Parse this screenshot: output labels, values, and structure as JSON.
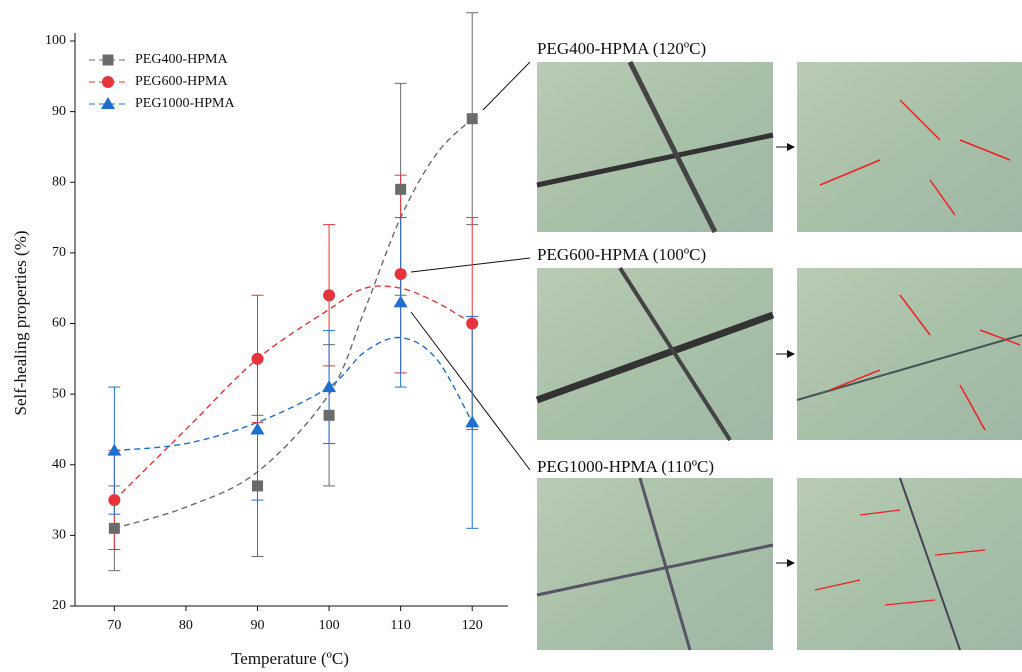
{
  "chart_data": {
    "type": "scatter",
    "x_label": "Temperature (ºC)",
    "y_label": "Self-healing properties (%)",
    "x": [
      70,
      90,
      100,
      110,
      120
    ],
    "xlim": [
      64.5,
      125
    ],
    "xticks": [
      70,
      80,
      90,
      100,
      110,
      120
    ],
    "ylim": [
      20,
      100
    ],
    "yticks": [
      20,
      30,
      40,
      50,
      60,
      70,
      80,
      90,
      100
    ],
    "legend": "upper left",
    "fit_x": [
      70,
      80,
      90,
      100,
      105,
      110,
      115,
      120
    ],
    "series": [
      {
        "name": "PEG400-HPMA",
        "color": "#6b6b6b",
        "marker": "square",
        "values": [
          31,
          37,
          47,
          79,
          89
        ],
        "errors": [
          6,
          10,
          10,
          15,
          15
        ],
        "fit": [
          31,
          34,
          39,
          50,
          62,
          75,
          84,
          89
        ]
      },
      {
        "name": "PEG600-HPMA",
        "color": "#e8333c",
        "marker": "circle",
        "values": [
          35,
          55,
          64,
          67,
          60
        ],
        "errors": [
          7,
          9,
          10,
          14,
          15
        ],
        "fit": [
          35,
          45,
          55,
          62,
          65,
          65,
          63,
          60
        ]
      },
      {
        "name": "PEG1000-HPMA",
        "color": "#1f6fd0",
        "marker": "triangle",
        "values": [
          42,
          45,
          51,
          63,
          46
        ],
        "errors": [
          9,
          10,
          8,
          12,
          15
        ],
        "fit": [
          42,
          43,
          46,
          51,
          56,
          58,
          55,
          46
        ]
      }
    ],
    "annotations": [
      "PEG400-HPMA (120ºC)",
      "PEG600-HPMA (100ºC)",
      "PEG1000-HPMA (110ºC)"
    ]
  }
}
